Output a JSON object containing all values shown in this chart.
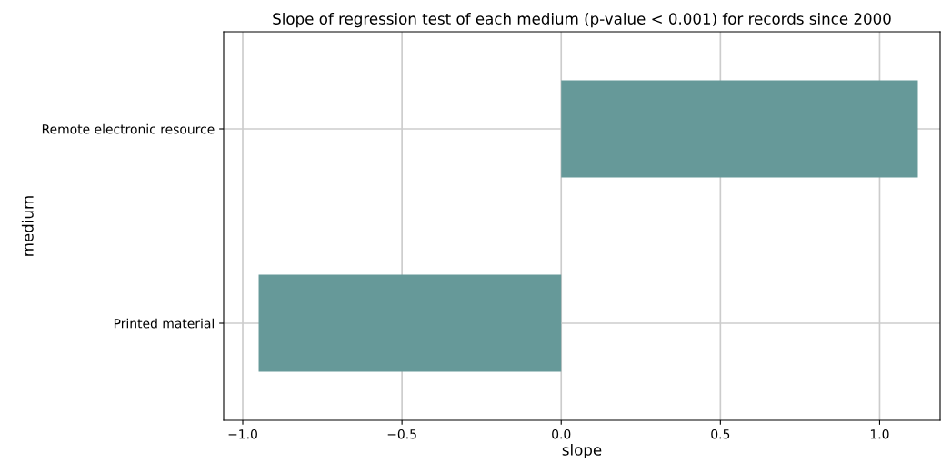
{
  "chart_data": {
    "type": "bar",
    "orientation": "horizontal",
    "title": "Slope of regression test of each medium (p-value < 0.001) for records since 2000",
    "xlabel": "slope",
    "ylabel": "medium",
    "categories": [
      "Remote electronic resource",
      "Printed material"
    ],
    "series": [
      {
        "color": "#669999",
        "values": [
          1.12,
          -0.95
        ]
      }
    ],
    "xlim": [
      -1.06,
      1.19
    ],
    "xticks": [
      {
        "value": -1.0,
        "label": "−1.0"
      },
      {
        "value": -0.5,
        "label": "−0.5"
      },
      {
        "value": 0.0,
        "label": "0.0"
      },
      {
        "value": 0.5,
        "label": "0.5"
      },
      {
        "value": 1.0,
        "label": "1.0"
      }
    ],
    "grid": true
  }
}
